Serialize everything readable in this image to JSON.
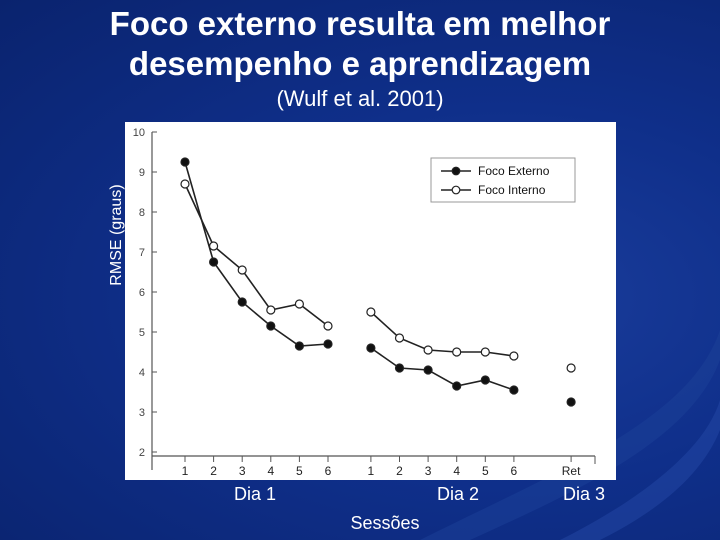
{
  "slide": {
    "title_line1": "Foco externo resulta em melhor",
    "title_line2": "desempenho e aprendizagem",
    "subtitle": "(Wulf et al. 2001)"
  },
  "chart_data": {
    "type": "line",
    "ylabel": "RMSE (graus)",
    "xlabel": "Sessões",
    "ylim": [
      2,
      10
    ],
    "yticks": [
      "2",
      "3",
      "4",
      "5",
      "6",
      "7",
      "8",
      "9",
      "10"
    ],
    "x_ticks": [
      {
        "label": "1",
        "session": 1
      },
      {
        "label": "2",
        "session": 2
      },
      {
        "label": "3",
        "session": 3
      },
      {
        "label": "4",
        "session": 4
      },
      {
        "label": "5",
        "session": 5
      },
      {
        "label": "6",
        "session": 6
      },
      {
        "label": "1",
        "session": 7.5
      },
      {
        "label": "2",
        "session": 8.5
      },
      {
        "label": "3",
        "session": 9.5
      },
      {
        "label": "4",
        "session": 10.5
      },
      {
        "label": "5",
        "session": 11.5
      },
      {
        "label": "6",
        "session": 12.5
      },
      {
        "label": "Ret",
        "session": 14.5
      }
    ],
    "day_labels": [
      "Dia 1",
      "Dia 2",
      "Dia 3"
    ],
    "series": [
      {
        "name": "Foco Externo",
        "marker": "filled",
        "segments": [
          [
            {
              "x": 1,
              "y": 9.25
            },
            {
              "x": 2,
              "y": 6.75
            },
            {
              "x": 3,
              "y": 5.75
            },
            {
              "x": 4,
              "y": 5.15
            },
            {
              "x": 5,
              "y": 4.65
            },
            {
              "x": 6,
              "y": 4.7
            }
          ],
          [
            {
              "x": 7.5,
              "y": 4.6
            },
            {
              "x": 8.5,
              "y": 4.1
            },
            {
              "x": 9.5,
              "y": 4.05
            },
            {
              "x": 10.5,
              "y": 3.65
            },
            {
              "x": 11.5,
              "y": 3.8
            },
            {
              "x": 12.5,
              "y": 3.55
            }
          ],
          [
            {
              "x": 14.5,
              "y": 3.25
            }
          ]
        ]
      },
      {
        "name": "Foco Interno",
        "marker": "open",
        "segments": [
          [
            {
              "x": 1,
              "y": 8.7
            },
            {
              "x": 2,
              "y": 7.15
            },
            {
              "x": 3,
              "y": 6.55
            },
            {
              "x": 4,
              "y": 5.55
            },
            {
              "x": 5,
              "y": 5.7
            },
            {
              "x": 6,
              "y": 5.15
            }
          ],
          [
            {
              "x": 7.5,
              "y": 5.5
            },
            {
              "x": 8.5,
              "y": 4.85
            },
            {
              "x": 9.5,
              "y": 4.55
            },
            {
              "x": 10.5,
              "y": 4.5
            },
            {
              "x": 11.5,
              "y": 4.5
            },
            {
              "x": 12.5,
              "y": 4.4
            }
          ],
          [
            {
              "x": 14.5,
              "y": 4.1
            }
          ]
        ]
      }
    ],
    "colors": {
      "external": "#111111",
      "internal": "#ffffff",
      "axis": "#555555"
    }
  }
}
